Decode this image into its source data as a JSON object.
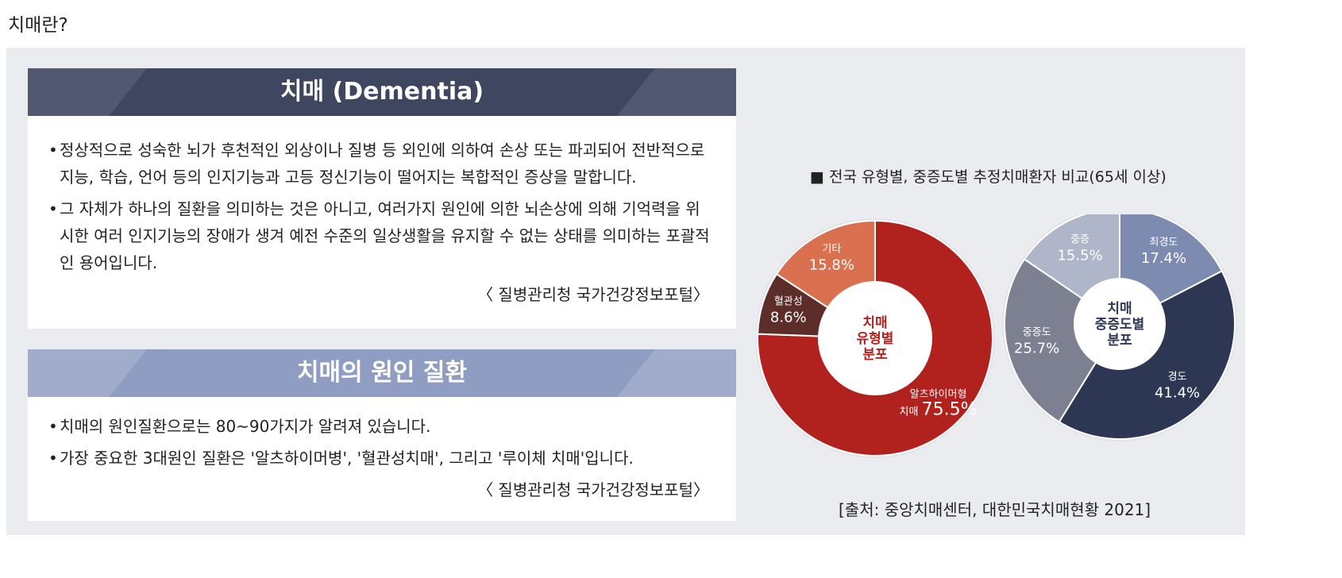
{
  "page_title": "치매란?",
  "card1": {
    "title": "치매 (Dementia)",
    "bullets": [
      "정상적으로 성숙한 뇌가 후천적인 외상이나 질병 등 외인에 의하여 손상 또는 파괴되어 전반적으로 지능, 학습, 언어 등의 인지기능과 고등 정신기능이 떨어지는 복합적인 증상을 말합니다.",
      "그 자체가 하나의 질환을 의미하는 것은 아니고, 여러가지 원인에 의한 뇌손상에 의해 기억력을 위시한 여러 인지기능의 장애가 생겨 예전 수준의 일상생활을 유지할 수 없는 상태를 의미하는 포괄적인 용어입니다."
    ],
    "source": "〈 질병관리청 국가건강정보포털〉"
  },
  "card2": {
    "title": "치매의 원인 질환",
    "bullets": [
      "치매의 원인질환으로는 80~90가지가 알려져 있습니다.",
      "가장 중요한 3대원인 질환은 '알츠하이머병', '혈관성치매', 그리고 '루이체 치매'입니다."
    ],
    "source": "〈 질병관리청 국가건강정보포털〉"
  },
  "chart_title": "■ 전국 유형별, 중증도별 추정치매환자 비교(65세 이상)",
  "chart_source": "[출처: 중앙치매센터, 대한민국치매현황 2021]",
  "chart_data": [
    {
      "type": "pie",
      "center_label": [
        "치매",
        "유형별",
        "분포"
      ],
      "center_color": "#b2231f",
      "slices": [
        {
          "label": "알츠하이머형 치매",
          "value": 75.5,
          "display": "75.5%",
          "color": "#b1221f"
        },
        {
          "label": "혈관성",
          "value": 8.6,
          "display": "8.6%",
          "color": "#5d2d2a"
        },
        {
          "label": "기타",
          "value": 15.8,
          "display": "15.8%",
          "color": "#d9704f"
        }
      ]
    },
    {
      "type": "pie",
      "center_label": [
        "치매",
        "중증도별",
        "분포"
      ],
      "center_color": "#2e3957",
      "slices": [
        {
          "label": "최경도",
          "value": 17.4,
          "display": "17.4%",
          "color": "#7d8bb1"
        },
        {
          "label": "경도",
          "value": 41.4,
          "display": "41.4%",
          "color": "#2d3652"
        },
        {
          "label": "중증도",
          "value": 25.7,
          "display": "25.7%",
          "color": "#7d8091"
        },
        {
          "label": "중증",
          "value": 15.5,
          "display": "15.5%",
          "color": "#b0b6c9"
        }
      ]
    }
  ]
}
